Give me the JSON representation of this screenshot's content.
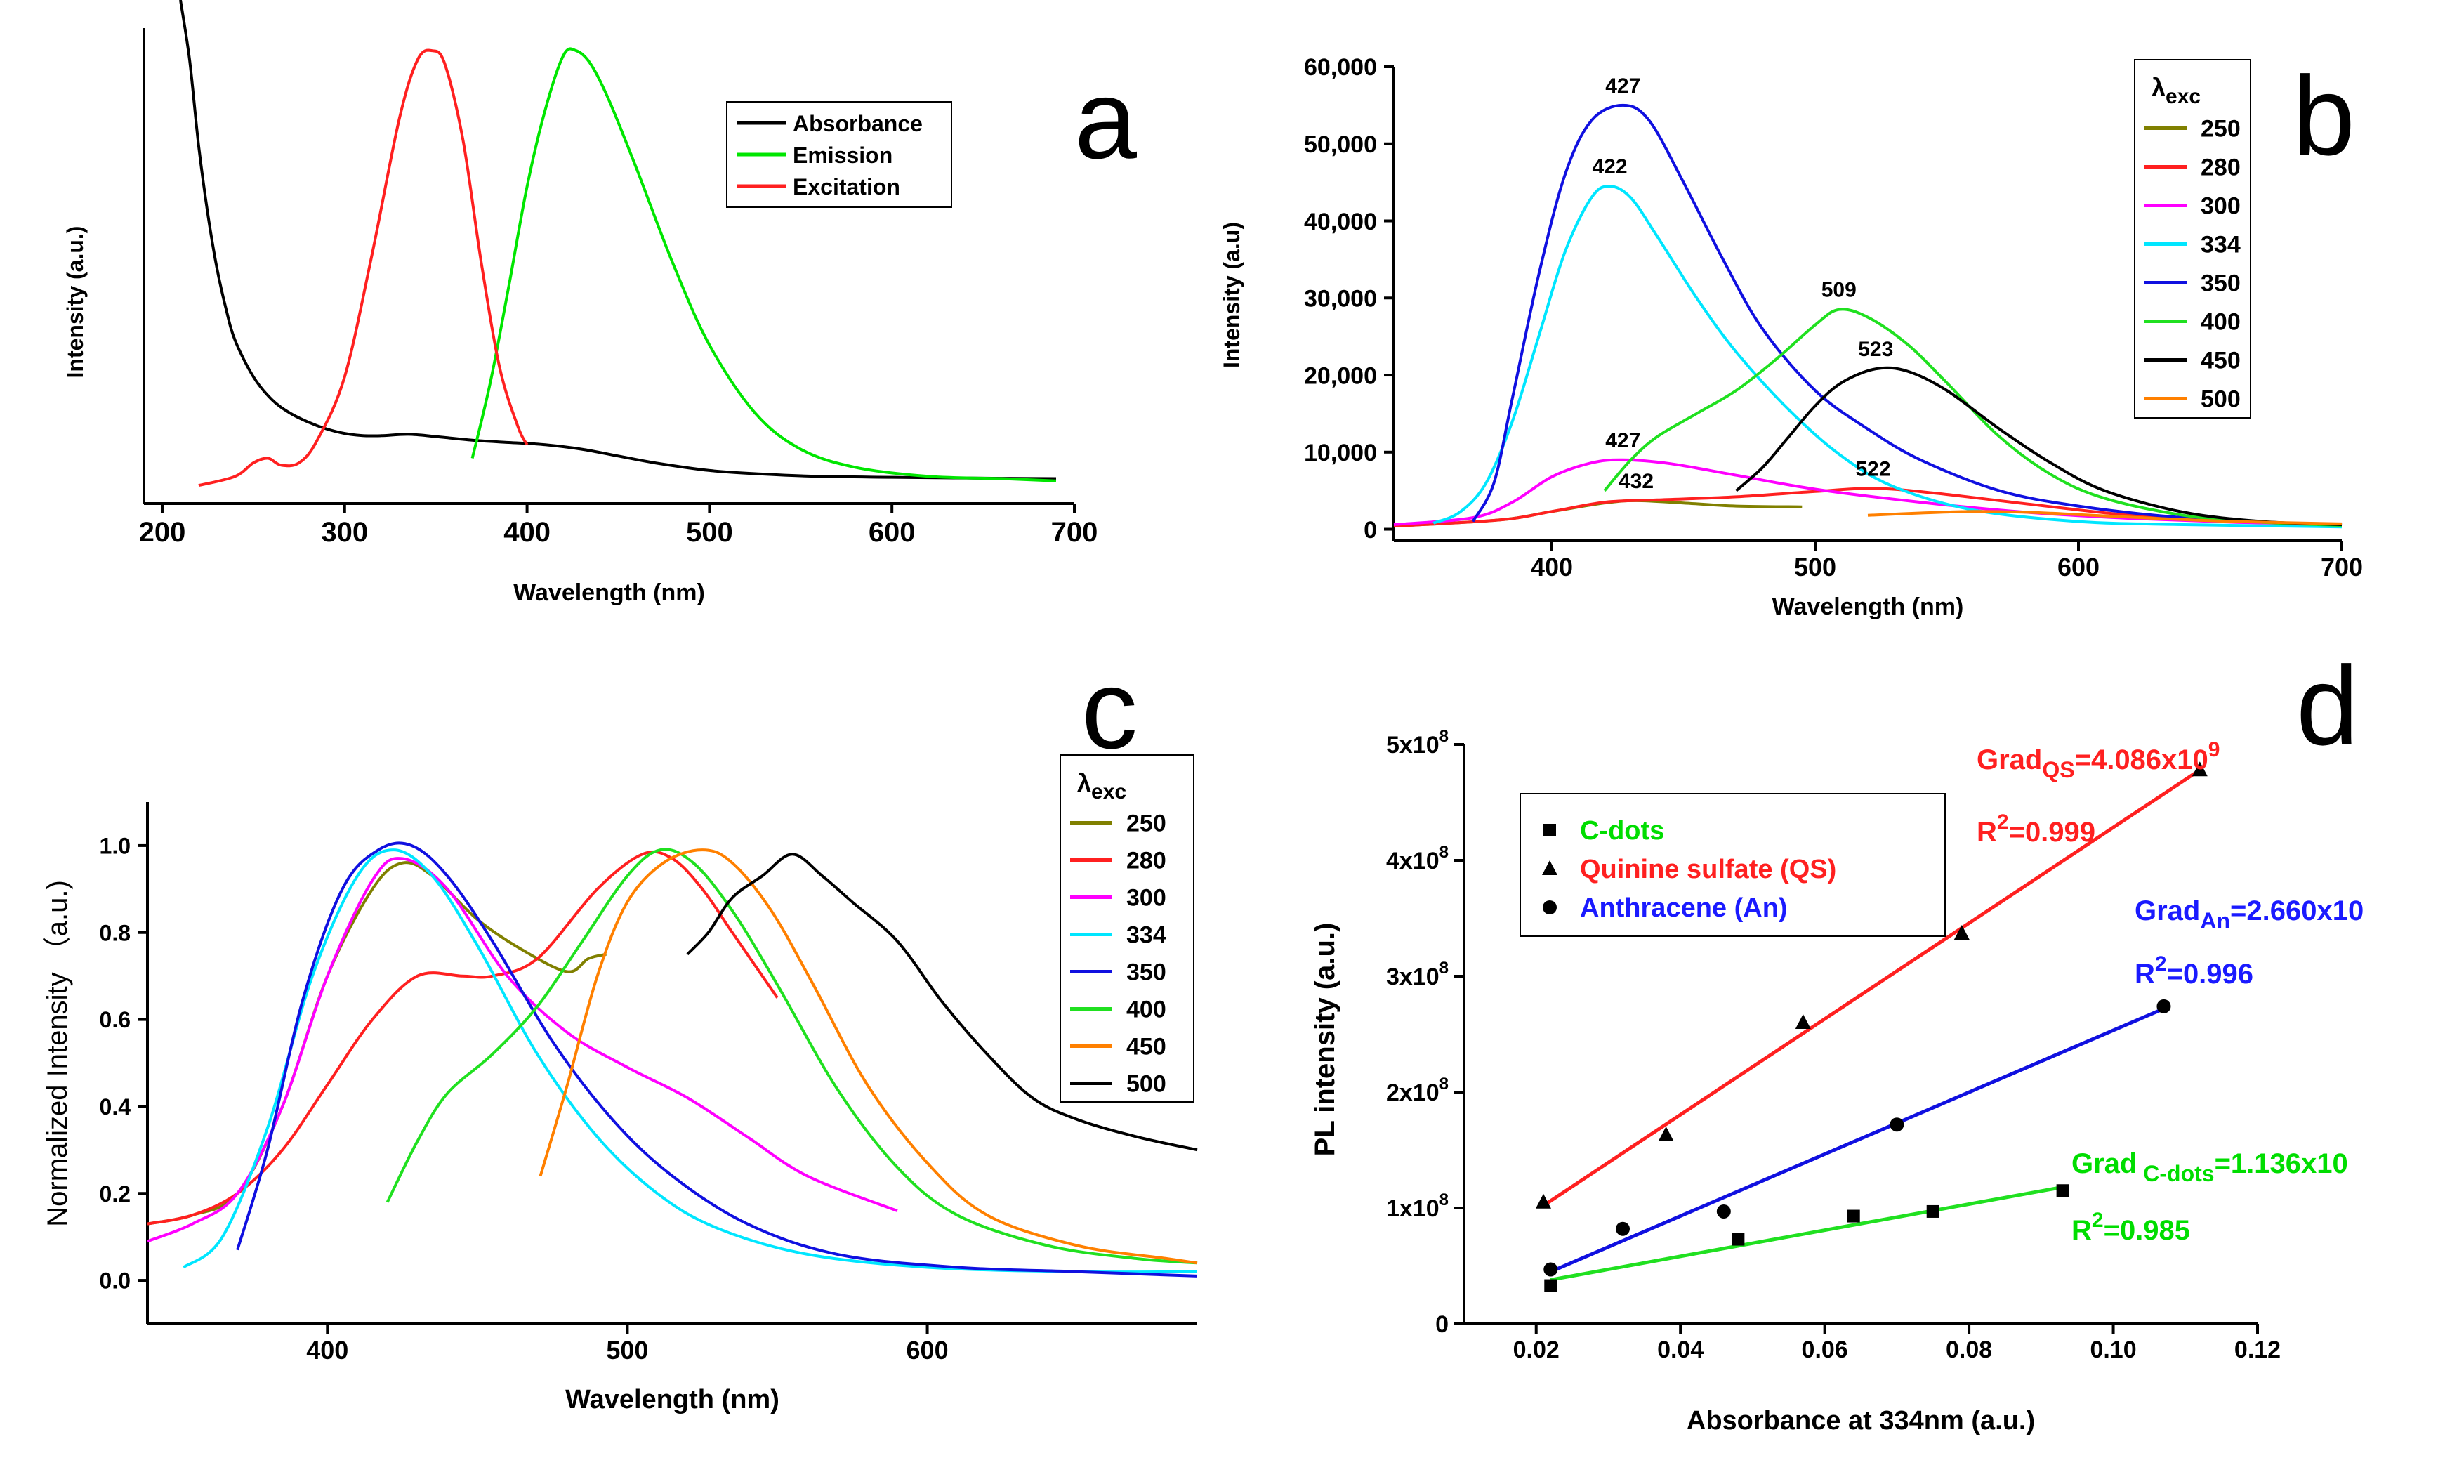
{
  "chart_data": [
    {
      "panel": "a",
      "type": "line",
      "panel_letter": "a",
      "xlabel": "Wavelength (nm)",
      "ylabel": "Intensity (a.u.)",
      "xlim": [
        190,
        700
      ],
      "ylim": [
        0,
        1.05
      ],
      "xticks": [
        200,
        300,
        400,
        500,
        600,
        700
      ],
      "yticks_shown": false,
      "legend": "top-center",
      "series": [
        {
          "name": "Absorbance",
          "color": "#000000",
          "x": [
            210,
            215,
            220,
            225,
            230,
            235,
            240,
            250,
            260,
            270,
            280,
            290,
            300,
            310,
            320,
            335,
            350,
            370,
            390,
            410,
            430,
            450,
            470,
            500,
            530,
            560,
            600,
            650,
            690
          ],
          "y": [
            1.25,
            0.98,
            0.79,
            0.64,
            0.52,
            0.43,
            0.36,
            0.28,
            0.23,
            0.2,
            0.18,
            0.165,
            0.155,
            0.15,
            0.15,
            0.153,
            0.148,
            0.14,
            0.135,
            0.13,
            0.12,
            0.105,
            0.09,
            0.073,
            0.065,
            0.06,
            0.058,
            0.056,
            0.055
          ]
        },
        {
          "name": "Emission",
          "color": "#00e600",
          "x": [
            370,
            380,
            390,
            400,
            410,
            420,
            427,
            435,
            445,
            460,
            480,
            500,
            525,
            550,
            580,
            620,
            660,
            690
          ],
          "y": [
            0.1,
            0.27,
            0.48,
            0.7,
            0.87,
            0.99,
            1.0,
            0.97,
            0.89,
            0.74,
            0.53,
            0.35,
            0.2,
            0.12,
            0.08,
            0.06,
            0.055,
            0.05
          ]
        },
        {
          "name": "Excitation",
          "color": "#ff2020",
          "x": [
            220,
            240,
            250,
            258,
            265,
            275,
            285,
            300,
            315,
            330,
            340,
            348,
            355,
            365,
            375,
            385,
            395,
            400
          ],
          "y": [
            0.04,
            0.06,
            0.09,
            0.1,
            0.085,
            0.09,
            0.14,
            0.28,
            0.55,
            0.85,
            0.98,
            1.0,
            0.97,
            0.8,
            0.53,
            0.3,
            0.17,
            0.13
          ]
        }
      ]
    },
    {
      "panel": "b",
      "type": "line",
      "panel_letter": "b",
      "xlabel": "Wavelength (nm)",
      "ylabel": "Intensity (a.u)",
      "xlim": [
        340,
        700
      ],
      "ylim": [
        -1500,
        60000
      ],
      "xticks": [
        400,
        500,
        600,
        700
      ],
      "yticks": [
        0,
        10000,
        20000,
        30000,
        40000,
        50000,
        60000
      ],
      "ytick_labels": [
        "0",
        "10,000",
        "20,000",
        "30,000",
        "40,000",
        "50,000",
        "60,000"
      ],
      "legend_title_main": "λ",
      "legend_title_sub": "exc",
      "legend": "top-right",
      "series": [
        {
          "name": "250",
          "color": "#808000",
          "x": [
            340,
            380,
            400,
            420,
            432,
            450,
            470,
            495
          ],
          "y": [
            400,
            1200,
            2300,
            3400,
            3700,
            3400,
            3000,
            2900
          ]
        },
        {
          "name": "280",
          "color": "#ff2020",
          "x": [
            340,
            380,
            400,
            420,
            440,
            470,
            500,
            522,
            545,
            580,
            620,
            660,
            700
          ],
          "y": [
            400,
            1200,
            2300,
            3500,
            3800,
            4200,
            4900,
            5300,
            4700,
            3300,
            1800,
            1000,
            600
          ]
        },
        {
          "name": "300",
          "color": "#ff00ff",
          "x": [
            340,
            370,
            385,
            400,
            415,
            427,
            445,
            470,
            500,
            540,
            580,
            620,
            660,
            700
          ],
          "y": [
            600,
            1500,
            3500,
            6800,
            8600,
            9000,
            8500,
            7000,
            5200,
            3500,
            2200,
            1400,
            900,
            600
          ]
        },
        {
          "name": "334",
          "color": "#00e6ff",
          "x": [
            355,
            365,
            375,
            385,
            395,
            405,
            415,
            422,
            430,
            440,
            455,
            470,
            490,
            510,
            530,
            560,
            600,
            640,
            700
          ],
          "y": [
            800,
            2200,
            6000,
            14000,
            25000,
            36000,
            43000,
            44500,
            43000,
            38000,
            30000,
            23000,
            15500,
            9500,
            5500,
            2500,
            1000,
            600,
            300
          ]
        },
        {
          "name": "350",
          "color": "#1010e0",
          "x": [
            370,
            378,
            385,
            395,
            405,
            415,
            427,
            437,
            450,
            465,
            480,
            500,
            520,
            540,
            570,
            600,
            640,
            700
          ],
          "y": [
            1000,
            6000,
            17000,
            33000,
            46000,
            53000,
            55000,
            53000,
            45000,
            35000,
            26000,
            18000,
            13000,
            9000,
            5000,
            3000,
            1500,
            500
          ]
        },
        {
          "name": "400",
          "color": "#20e020",
          "x": [
            420,
            430,
            440,
            455,
            470,
            485,
            500,
            509,
            520,
            535,
            550,
            570,
            590,
            610,
            640,
            670,
            700
          ],
          "y": [
            5000,
            9000,
            12000,
            15000,
            18000,
            22000,
            26500,
            28500,
            27500,
            24000,
            19000,
            12000,
            7000,
            4000,
            1800,
            900,
            500
          ]
        },
        {
          "name": "450",
          "color": "#000000",
          "x": [
            470,
            480,
            490,
            500,
            510,
            523,
            535,
            550,
            570,
            590,
            610,
            640,
            670,
            700
          ],
          "y": [
            5000,
            8000,
            12000,
            16000,
            19000,
            20800,
            20500,
            18000,
            13000,
            8500,
            5000,
            2200,
            1000,
            600
          ]
        },
        {
          "name": "500",
          "color": "#ff8000",
          "x": [
            520,
            540,
            560,
            580,
            600,
            630,
            660,
            700
          ],
          "y": [
            1800,
            2100,
            2300,
            2200,
            1900,
            1400,
            1000,
            700
          ]
        }
      ],
      "annotations": [
        {
          "text": "427",
          "x": 427,
          "y": 55000
        },
        {
          "text": "422",
          "x": 422,
          "y": 44500
        },
        {
          "text": "509",
          "x": 509,
          "y": 28500
        },
        {
          "text": "523",
          "x": 523,
          "y": 20800
        },
        {
          "text": "427",
          "x": 427,
          "y": 9000
        },
        {
          "text": "432",
          "x": 432,
          "y": 3700
        },
        {
          "text": "522",
          "x": 522,
          "y": 5300
        }
      ]
    },
    {
      "panel": "c",
      "type": "line",
      "panel_letter": "c",
      "xlabel": "Wavelength (nm)",
      "ylabel": "Normalized Intensity （a.u.)",
      "xlim": [
        340,
        690
      ],
      "ylim": [
        -0.1,
        1.1
      ],
      "xticks": [
        400,
        500,
        600
      ],
      "yticks": [
        0.0,
        0.2,
        0.4,
        0.6,
        0.8,
        1.0
      ],
      "legend_title_main": "λ",
      "legend_title_sub": "exc",
      "legend": "top-right",
      "series": [
        {
          "name": "250",
          "color": "#808000",
          "x": [
            340,
            355,
            370,
            385,
            400,
            415,
            425,
            435,
            450,
            465,
            480,
            487,
            493
          ],
          "y": [
            0.13,
            0.15,
            0.2,
            0.4,
            0.7,
            0.9,
            0.96,
            0.93,
            0.83,
            0.76,
            0.71,
            0.74,
            0.75
          ]
        },
        {
          "name": "280",
          "color": "#ff2020",
          "x": [
            340,
            355,
            370,
            385,
            400,
            415,
            430,
            445,
            455,
            470,
            490,
            505,
            515,
            525,
            535,
            550
          ],
          "y": [
            0.13,
            0.15,
            0.2,
            0.3,
            0.45,
            0.6,
            0.7,
            0.7,
            0.7,
            0.74,
            0.9,
            0.98,
            0.97,
            0.9,
            0.8,
            0.65
          ]
        },
        {
          "name": "300",
          "color": "#ff00ff",
          "x": [
            340,
            355,
            370,
            385,
            400,
            415,
            425,
            440,
            460,
            480,
            500,
            520,
            540,
            560,
            590
          ],
          "y": [
            0.09,
            0.13,
            0.2,
            0.4,
            0.7,
            0.92,
            0.97,
            0.9,
            0.7,
            0.57,
            0.49,
            0.42,
            0.33,
            0.24,
            0.16
          ]
        },
        {
          "name": "334",
          "color": "#00e6ff",
          "x": [
            352,
            365,
            380,
            395,
            410,
            422,
            435,
            450,
            470,
            490,
            510,
            530,
            560,
            600,
            650,
            690
          ],
          "y": [
            0.03,
            0.1,
            0.35,
            0.7,
            0.93,
            0.99,
            0.93,
            0.77,
            0.52,
            0.33,
            0.2,
            0.12,
            0.06,
            0.03,
            0.02,
            0.02
          ]
        },
        {
          "name": "350",
          "color": "#1010e0",
          "x": [
            370,
            380,
            392,
            405,
            417,
            428,
            440,
            455,
            475,
            495,
            515,
            540,
            570,
            610,
            650,
            690
          ],
          "y": [
            0.07,
            0.3,
            0.65,
            0.9,
            0.99,
            1.0,
            0.93,
            0.78,
            0.55,
            0.37,
            0.24,
            0.13,
            0.06,
            0.03,
            0.02,
            0.01
          ]
        },
        {
          "name": "400",
          "color": "#20e020",
          "x": [
            420,
            430,
            440,
            455,
            470,
            485,
            500,
            511,
            522,
            535,
            550,
            570,
            590,
            610,
            640,
            670,
            690
          ],
          "y": [
            0.18,
            0.32,
            0.43,
            0.52,
            0.63,
            0.78,
            0.93,
            0.99,
            0.96,
            0.85,
            0.68,
            0.44,
            0.26,
            0.15,
            0.08,
            0.05,
            0.04
          ]
        },
        {
          "name": "450",
          "color": "#ff8000",
          "x": [
            471,
            480,
            490,
            500,
            512,
            525,
            535,
            548,
            562,
            580,
            600,
            620,
            650,
            680,
            690
          ],
          "y": [
            0.24,
            0.45,
            0.7,
            0.87,
            0.96,
            0.99,
            0.96,
            0.85,
            0.68,
            0.45,
            0.27,
            0.15,
            0.08,
            0.05,
            0.04
          ]
        },
        {
          "name": "500",
          "color": "#000000",
          "x": [
            520,
            527,
            535,
            545,
            555,
            565,
            575,
            590,
            605,
            620,
            635,
            650,
            670,
            690
          ],
          "y": [
            0.75,
            0.8,
            0.88,
            0.93,
            0.98,
            0.93,
            0.87,
            0.78,
            0.64,
            0.52,
            0.42,
            0.37,
            0.33,
            0.3
          ]
        }
      ]
    },
    {
      "panel": "d",
      "type": "scatter",
      "panel_letter": "d",
      "xlabel": "Absorbance at 334nm (a.u.)",
      "ylabel": "PL intensity (a.u.)",
      "xlim": [
        0.01,
        0.12
      ],
      "ylim": [
        0,
        500000000
      ],
      "xticks": [
        0.02,
        0.04,
        0.06,
        0.08,
        0.1,
        0.12
      ],
      "xtick_labels": [
        "0.02",
        "0.04",
        "0.06",
        "0.08",
        "0.10",
        "0.12"
      ],
      "yticks": [
        0,
        100000000,
        200000000,
        300000000,
        400000000,
        500000000
      ],
      "ytick_bases": [
        "0",
        "1x10",
        "2x10",
        "3x10",
        "4x10",
        "5x10"
      ],
      "ytick_exps": [
        "",
        "8",
        "8",
        "8",
        "8",
        "8"
      ],
      "legend": "top-left",
      "series": [
        {
          "name": "C-dots",
          "marker": "square",
          "text_color": "#00dd00",
          "line_color": "#20e020",
          "x": [
            0.022,
            0.048,
            0.064,
            0.075,
            0.093
          ],
          "y": [
            33000000,
            73000000,
            93000000,
            97000000,
            115000000
          ],
          "fit": {
            "x": [
              0.022,
              0.093
            ],
            "y": [
              38000000,
              118000000
            ]
          }
        },
        {
          "name": "Quinine sulfate (QS)",
          "marker": "triangle",
          "text_color": "#ff2020",
          "line_color": "#ff2020",
          "x": [
            0.021,
            0.038,
            0.057,
            0.079,
            0.112
          ],
          "y": [
            105000000,
            163000000,
            260000000,
            337000000,
            478000000
          ],
          "fit": {
            "x": [
              0.021,
              0.112
            ],
            "y": [
              102000000,
              478000000
            ]
          }
        },
        {
          "name": "Anthracene (An)",
          "marker": "circle",
          "text_color": "#1a1aff",
          "line_color": "#1010e0",
          "x": [
            0.022,
            0.032,
            0.046,
            0.07,
            0.107
          ],
          "y": [
            47000000,
            82000000,
            97000000,
            172000000,
            274000000
          ],
          "fit": {
            "x": [
              0.022,
              0.107
            ],
            "y": [
              45000000,
              272000000
            ]
          }
        }
      ],
      "annotations": [
        {
          "id": "qs_grad",
          "prefix": "Grad",
          "sub": "QS",
          "mid": "=4.086x10",
          "sup": "9",
          "color": "#ff2020"
        },
        {
          "id": "qs_r2",
          "prefix": "R",
          "sup": "2",
          "suffix": "=0.999",
          "color": "#ff2020"
        },
        {
          "id": "an_grad",
          "prefix": "Grad",
          "sub": "An",
          "mid": "=2.660x10",
          "sup": "",
          "color": "#1a1aff"
        },
        {
          "id": "an_r2",
          "prefix": "R",
          "sup": "2",
          "suffix": "=0.996",
          "color": "#1a1aff"
        },
        {
          "id": "cd_grad",
          "prefix": "Grad",
          "sub": " C-dots",
          "mid": "=1.136x10",
          "sup": "",
          "color": "#00dd00"
        },
        {
          "id": "cd_r2",
          "prefix": "R",
          "sup": "2",
          "suffix": "=0.985",
          "color": "#00dd00"
        }
      ]
    }
  ]
}
